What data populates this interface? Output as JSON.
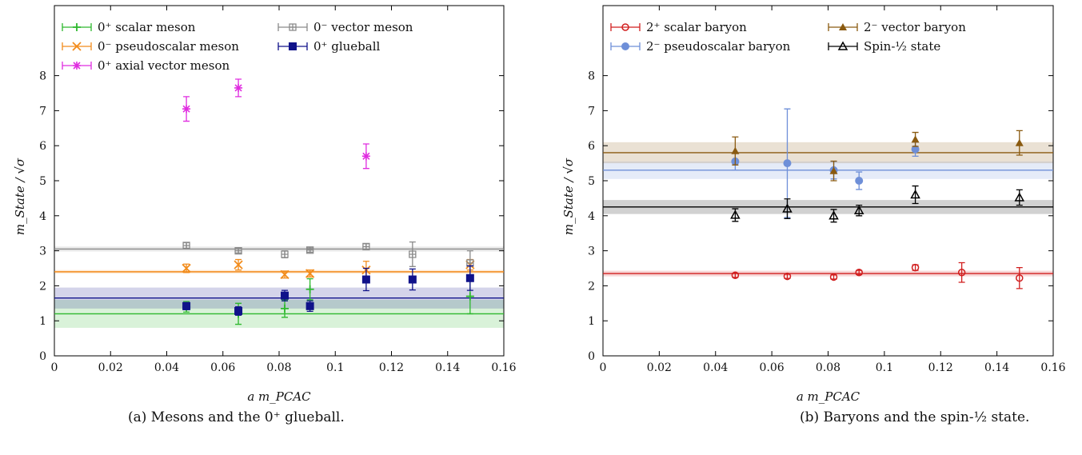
{
  "chart_data": [
    {
      "type": "scatter",
      "xlabel": "a m_PCAC",
      "ylabel": "m_State / √σ",
      "xlim": [
        0,
        0.16
      ],
      "ylim": [
        0,
        10
      ],
      "xticks": [
        "0",
        "0.02",
        "0.04",
        "0.06",
        "0.08",
        "0.1",
        "0.12",
        "0.14",
        "0.16"
      ],
      "yticks": [
        "0",
        "1",
        "2",
        "3",
        "4",
        "5",
        "6",
        "7",
        "8"
      ],
      "legend_position": "top",
      "caption": "(a) Mesons and the 0⁺ glueball.",
      "series": [
        {
          "name": "0⁺ scalar meson",
          "color": "#2db82d",
          "marker": "plus",
          "points": [
            [
              0.047,
              1.4,
              0.15
            ],
            [
              0.0655,
              1.2,
              0.3
            ],
            [
              0.082,
              1.35,
              0.25
            ],
            [
              0.091,
              1.9,
              0.3
            ],
            [
              0.148,
              1.7,
              0.5
            ]
          ],
          "band": [
            1.2,
            0.4
          ]
        },
        {
          "name": "0⁻ pseudoscalar meson",
          "color": "#f28c1c",
          "marker": "cross",
          "points": [
            [
              0.047,
              2.5,
              0.12
            ],
            [
              0.0655,
              2.6,
              0.15
            ],
            [
              0.082,
              2.32,
              0.1
            ],
            [
              0.091,
              2.35,
              0.1
            ],
            [
              0.111,
              2.45,
              0.25
            ],
            [
              0.148,
              2.6,
              0.15
            ]
          ],
          "band": [
            2.4,
            0.05
          ]
        },
        {
          "name": "0⁺ axial vector meson",
          "color": "#e02de0",
          "marker": "star",
          "points": [
            [
              0.047,
              7.05,
              0.35
            ],
            [
              0.0655,
              7.65,
              0.25
            ],
            [
              0.111,
              5.7,
              0.35
            ]
          ],
          "band": null
        },
        {
          "name": "0⁻ vector meson",
          "color": "#8a8a8a",
          "marker": "boxplus",
          "points": [
            [
              0.047,
              3.15,
              0.08
            ],
            [
              0.0655,
              3.0,
              0.06
            ],
            [
              0.082,
              2.9,
              0.1
            ],
            [
              0.091,
              3.02,
              0.06
            ],
            [
              0.111,
              3.12,
              0.08
            ],
            [
              0.1275,
              2.9,
              0.35
            ],
            [
              0.148,
              2.65,
              0.35
            ]
          ],
          "band": [
            3.05,
            0.07
          ]
        },
        {
          "name": "0⁺ glueball",
          "color": "#10128a",
          "marker": "square",
          "points": [
            [
              0.047,
              1.42,
              0.1
            ],
            [
              0.0655,
              1.28,
              0.12
            ],
            [
              0.082,
              1.72,
              0.15
            ],
            [
              0.091,
              1.42,
              0.15
            ],
            [
              0.111,
              2.18,
              0.32
            ],
            [
              0.1275,
              2.18,
              0.3
            ],
            [
              0.148,
              2.22,
              0.35
            ]
          ],
          "band": [
            1.65,
            0.3
          ]
        }
      ]
    },
    {
      "type": "scatter",
      "xlabel": "a m_PCAC",
      "ylabel": "m_State / √σ",
      "xlim": [
        0,
        0.16
      ],
      "ylim": [
        0,
        10
      ],
      "xticks": [
        "0",
        "0.02",
        "0.04",
        "0.06",
        "0.08",
        "0.1",
        "0.12",
        "0.14",
        "0.16"
      ],
      "yticks": [
        "0",
        "1",
        "2",
        "3",
        "4",
        "5",
        "6",
        "7",
        "8"
      ],
      "legend_position": "top",
      "caption": "(b) Baryons and the spin-½ state.",
      "series": [
        {
          "name": "2⁺ scalar baryon",
          "color": "#d11f1f",
          "marker": "circle-open",
          "points": [
            [
              0.047,
              2.3,
              0.06
            ],
            [
              0.0655,
              2.27,
              0.06
            ],
            [
              0.082,
              2.25,
              0.06
            ],
            [
              0.091,
              2.38,
              0.06
            ],
            [
              0.111,
              2.52,
              0.08
            ],
            [
              0.1275,
              2.38,
              0.28
            ],
            [
              0.148,
              2.22,
              0.3
            ]
          ],
          "band": [
            2.35,
            0.08
          ]
        },
        {
          "name": "2⁻ pseudoscalar baryon",
          "color": "#6e8fd8",
          "marker": "circle",
          "points": [
            [
              0.047,
              5.55,
              0.25
            ],
            [
              0.0655,
              5.5,
              1.55
            ],
            [
              0.082,
              5.3,
              0.25
            ],
            [
              0.091,
              5.0,
              0.25
            ],
            [
              0.111,
              5.9,
              0.2
            ]
          ],
          "band": [
            5.3,
            0.25
          ]
        },
        {
          "name": "2⁻ vector baryon",
          "color": "#8a5a10",
          "marker": "triangle",
          "points": [
            [
              0.047,
              5.85,
              0.4
            ],
            [
              0.082,
              5.28,
              0.28
            ],
            [
              0.111,
              6.18,
              0.2
            ],
            [
              0.148,
              6.08,
              0.35
            ]
          ],
          "band": [
            5.8,
            0.3
          ]
        },
        {
          "name": "Spin-½ state",
          "color": "#000000",
          "marker": "triangle-open",
          "points": [
            [
              0.047,
              4.02,
              0.18
            ],
            [
              0.0655,
              4.2,
              0.28
            ],
            [
              0.082,
              4.0,
              0.18
            ],
            [
              0.091,
              4.15,
              0.15
            ],
            [
              0.111,
              4.6,
              0.25
            ],
            [
              0.148,
              4.52,
              0.22
            ]
          ],
          "band": [
            4.25,
            0.2
          ]
        }
      ]
    }
  ]
}
